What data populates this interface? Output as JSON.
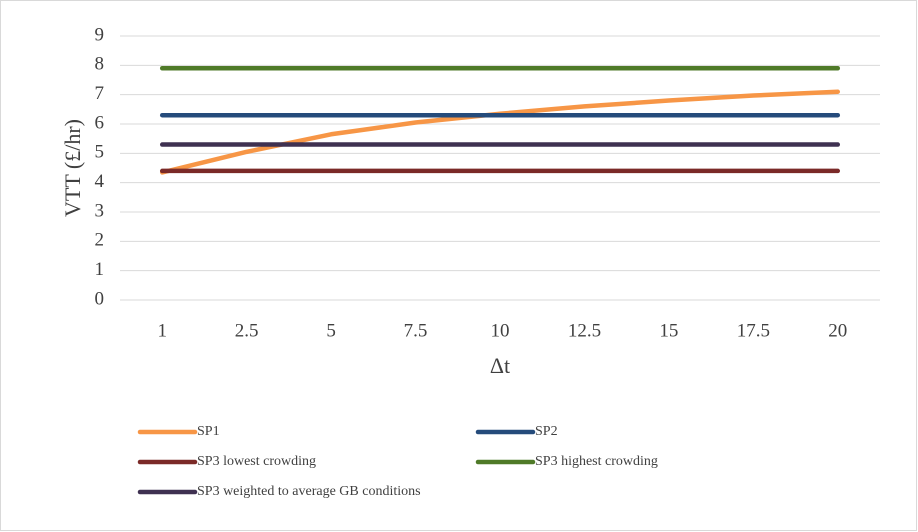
{
  "chart_data": {
    "type": "line",
    "categories": [
      "1",
      "2.5",
      "5",
      "7.5",
      "10",
      "12.5",
      "15",
      "17.5",
      "20"
    ],
    "x_label": "Δt",
    "y_label": "VTT (£/hr)",
    "ylim": [
      0,
      9
    ],
    "yticks": [
      0,
      1,
      2,
      3,
      4,
      5,
      6,
      7,
      8,
      9
    ],
    "grid": true,
    "legend": "bottom",
    "series": [
      {
        "name": "SP1",
        "color": "#f79646",
        "values": [
          4.35,
          5.05,
          5.65,
          6.05,
          6.35,
          6.6,
          6.8,
          6.97,
          7.1
        ]
      },
      {
        "name": "SP2",
        "color": "#254b7b",
        "values": [
          6.3,
          6.3,
          6.3,
          6.3,
          6.3,
          6.3,
          6.3,
          6.3,
          6.3
        ]
      },
      {
        "name": "SP3 lowest crowding",
        "color": "#7b2a28",
        "values": [
          4.4,
          4.4,
          4.4,
          4.4,
          4.4,
          4.4,
          4.4,
          4.4,
          4.4
        ]
      },
      {
        "name": "SP3 highest crowding",
        "color": "#4f7a28",
        "values": [
          7.9,
          7.9,
          7.9,
          7.9,
          7.9,
          7.9,
          7.9,
          7.9,
          7.9
        ]
      },
      {
        "name": "SP3 weighted to average GB conditions",
        "color": "#3f3151",
        "values": [
          5.3,
          5.3,
          5.3,
          5.3,
          5.3,
          5.3,
          5.3,
          5.3,
          5.3
        ]
      }
    ]
  }
}
